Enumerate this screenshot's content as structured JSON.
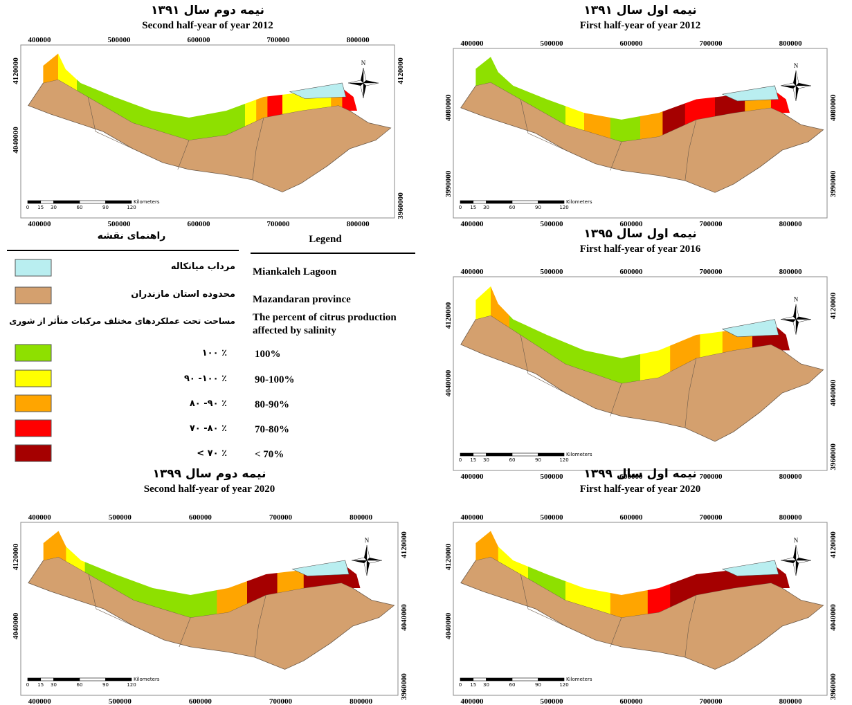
{
  "maps": [
    {
      "title_fa": "نیمه دوم سال ۱۳۹۱",
      "title_en": "Second half-year of year 2012",
      "x_labels_top": [
        400000,
        500000,
        600000,
        700000,
        800000
      ],
      "x_labels_bottom": [
        400000,
        500000,
        600000,
        700000,
        800000
      ],
      "y_labels_left": [
        4120000,
        4040000
      ],
      "y_labels_right": [
        4120000,
        3960000
      ],
      "scale_labels": [
        0,
        15,
        30,
        60,
        90,
        120
      ],
      "scale_unit": "Kilometers",
      "north": "N"
    },
    {
      "title_fa": "نیمه اول سال ۱۳۹۱",
      "title_en": "First half-year of year 2012",
      "x_labels_top": [
        400000,
        500000,
        600000,
        700000,
        800000
      ],
      "x_labels_bottom": [
        400000,
        500000,
        600000,
        700000,
        800000
      ],
      "y_labels_left": [
        4080000,
        3990000
      ],
      "y_labels_right": [
        4080000,
        3990000
      ],
      "scale_labels": [
        0,
        15,
        30,
        60,
        90,
        120
      ],
      "scale_unit": "Kilometers",
      "north": "N"
    },
    {
      "title_fa": "نیمه اول سال ۱۳۹۵",
      "title_en": "First half-year of year 2016",
      "x_labels_top": [
        400000,
        500000,
        600000,
        700000,
        800000
      ],
      "x_labels_bottom": [
        400000,
        500000,
        600000,
        700000,
        800000
      ],
      "y_labels_left": [
        4120000,
        4040000
      ],
      "y_labels_right": [
        4120000,
        4040000,
        3960000
      ],
      "scale_labels": [
        0,
        15,
        30,
        60,
        90,
        120
      ],
      "scale_unit": "Kilometers",
      "north": "N"
    },
    {
      "title_fa": "نیمه دوم سال ۱۳۹۹",
      "title_en": "Second half-year of year 2020",
      "x_labels_top": [
        400000,
        500000,
        600000,
        700000,
        800000
      ],
      "x_labels_bottom": [
        400000,
        500000,
        600000,
        700000,
        800000
      ],
      "y_labels_left": [
        4120000,
        4040000
      ],
      "y_labels_right": [
        4120000,
        4040000,
        3960000
      ],
      "scale_labels": [
        0,
        15,
        30,
        60,
        90,
        120
      ],
      "scale_unit": "Kilometers",
      "north": "N"
    },
    {
      "title_fa": "نیمه اول سال ۱۳۹۹",
      "title_en": "First half-year of year 2020",
      "x_labels_top": [
        400000,
        500000,
        600000,
        700000,
        800000
      ],
      "x_labels_bottom": [
        400000,
        500000,
        600000,
        700000,
        800000
      ],
      "y_labels_left": [
        4120000,
        4040000
      ],
      "y_labels_right": [
        4120000,
        4040000,
        3960000
      ],
      "scale_labels": [
        0,
        15,
        30,
        60,
        90,
        120
      ],
      "scale_unit": "Kilometers",
      "north": "N"
    }
  ],
  "legend": {
    "title_fa": "راهنمای نقشه",
    "title_en": "Legend",
    "items": [
      {
        "label_fa": "مرداب میانکاله",
        "label_en": "Miankaleh Lagoon",
        "color": "#b9eef0"
      },
      {
        "label_fa": "محدوده استان مازندران",
        "label_en": "Mazandaran province",
        "color": "#d4a06e"
      }
    ],
    "salinity_title_fa": "مساحت تحت عملکردهای مختلف مرکبات متأثر از شوری",
    "salinity_title_en": [
      "The percent of citrus production",
      "affected by salinity"
    ],
    "classes": [
      {
        "label_fa": "۱۰۰ ٪",
        "label_en": "100%",
        "color": "#8ee000"
      },
      {
        "label_fa": "۹۰ -۱۰۰ ٪",
        "label_en": "90-100%",
        "color": "#ffff00"
      },
      {
        "label_fa": "۸۰ -۹۰ ٪",
        "label_en": "80-90%",
        "color": "#ffa500"
      },
      {
        "label_fa": "۷۰ -۸۰ ٪",
        "label_en": "70-80%",
        "color": "#ff0000"
      },
      {
        "label_fa": "< ۷۰ ٪",
        "label_en": "< 70%",
        "color": "#a50000"
      }
    ]
  }
}
